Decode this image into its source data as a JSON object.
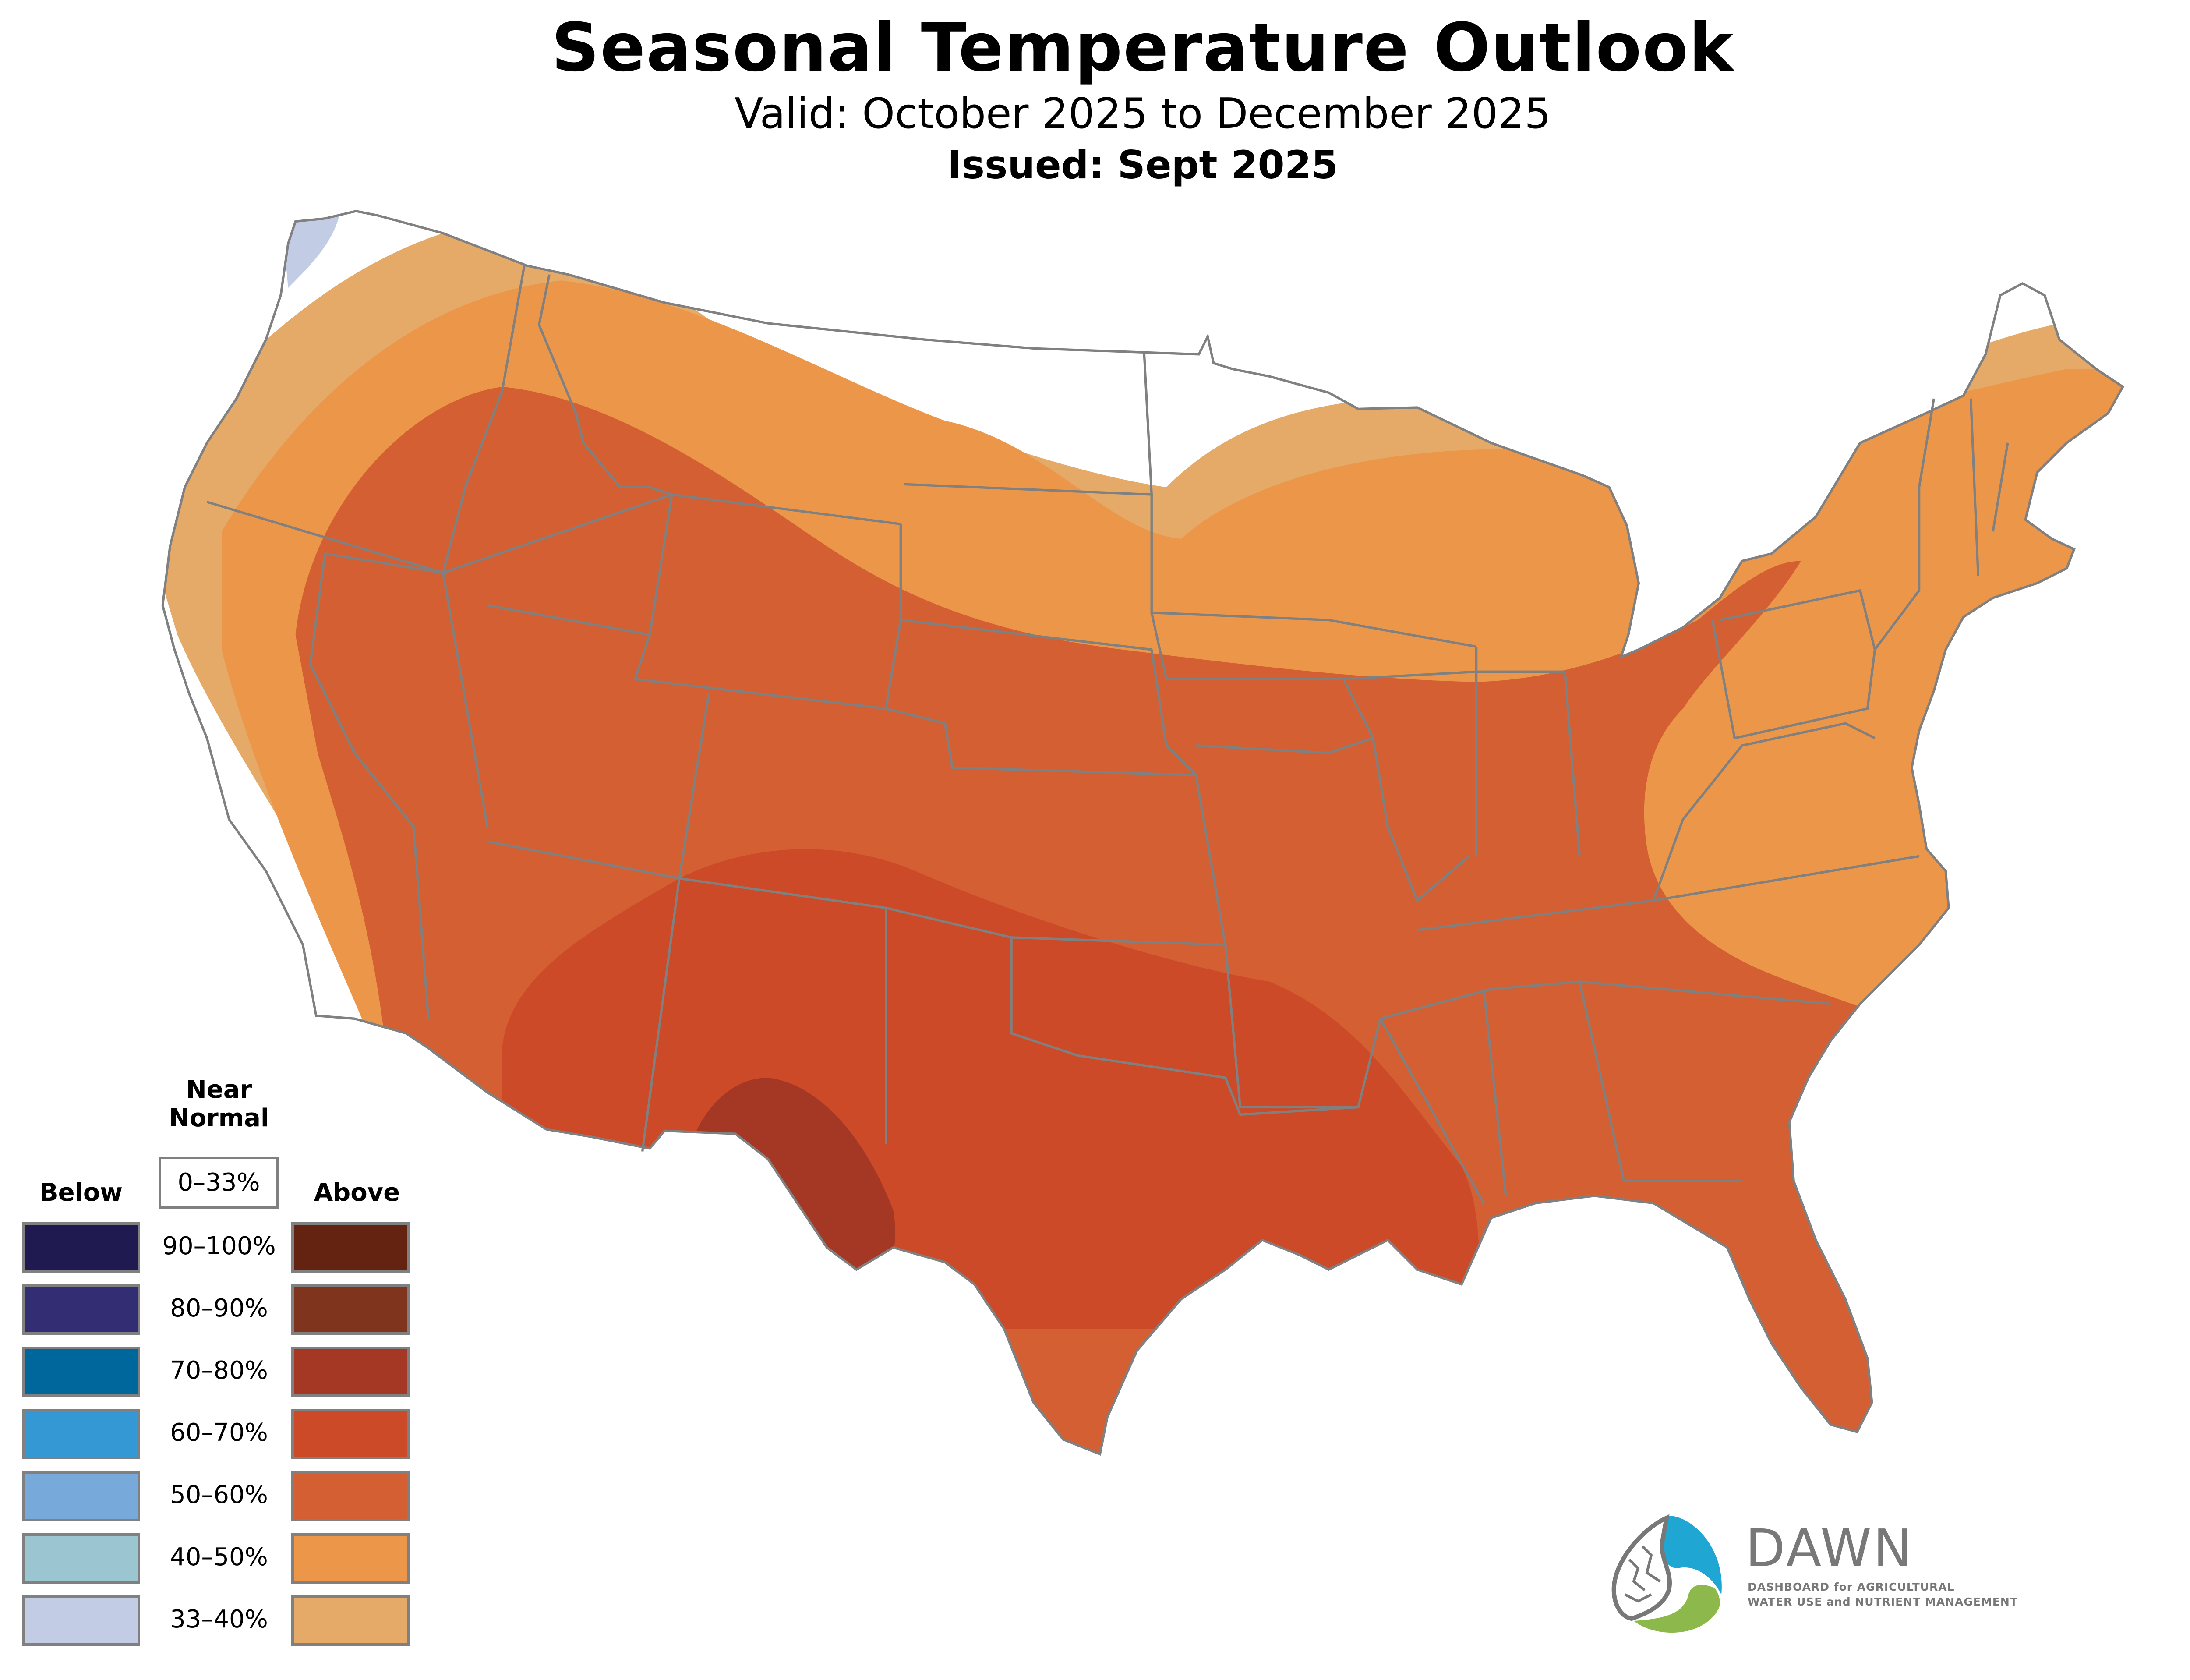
{
  "header": {
    "title": "Seasonal Temperature Outlook",
    "valid": "Valid: October 2025 to December 2025",
    "issued": "Issued: Sept 2025"
  },
  "legend": {
    "near_normal_heading_1": "Near",
    "near_normal_heading_2": "Normal",
    "near_normal_range": "0–33%",
    "below_heading": "Below",
    "above_heading": "Above",
    "rows": [
      {
        "label": "90–100%",
        "below_color": "#1f1a4f",
        "above_color": "#632310"
      },
      {
        "label": "80–90%",
        "below_color": "#332d74",
        "above_color": "#7e341d"
      },
      {
        "label": "70–80%",
        "below_color": "#00679c",
        "above_color": "#a53725"
      },
      {
        "label": "60–70%",
        "below_color": "#3398d3",
        "above_color": "#cc4a27"
      },
      {
        "label": "50–60%",
        "below_color": "#77aadb",
        "above_color": "#d35f33"
      },
      {
        "label": "40–50%",
        "below_color": "#9bc5d0",
        "above_color": "#eb9648"
      },
      {
        "label": "33–40%",
        "below_color": "#c3cce5",
        "above_color": "#e6aa68"
      }
    ]
  },
  "map": {
    "border_color": "#808080",
    "categories": [
      {
        "name": "above-33-40",
        "color": "#e6aa68"
      },
      {
        "name": "above-40-50",
        "color": "#eb9648"
      },
      {
        "name": "above-50-60",
        "color": "#d35f33"
      },
      {
        "name": "above-60-70",
        "color": "#cc4a27"
      },
      {
        "name": "above-70-80",
        "color": "#a53725"
      },
      {
        "name": "below-33-40",
        "color": "#c3cce5"
      }
    ]
  },
  "logo": {
    "wordmark": "DAWN",
    "subtitle_1": "DASHBOARD for AGRICULTURAL",
    "subtitle_2": "WATER USE and NUTRIENT MANAGEMENT",
    "colors": {
      "blue": "#1fa6d3",
      "green": "#8db84b",
      "gray": "#777877"
    }
  }
}
